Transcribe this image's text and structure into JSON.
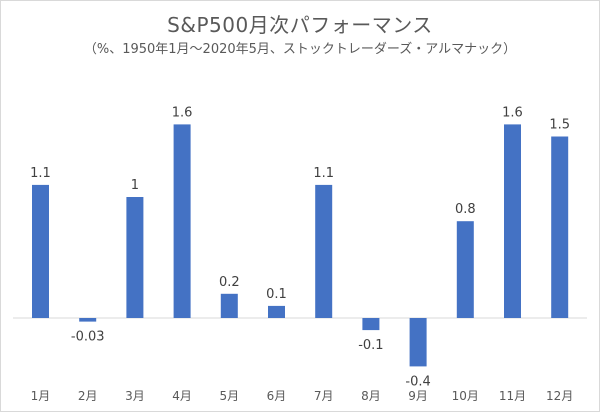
{
  "chart_data": {
    "type": "bar",
    "title": "S&P500月次パフォーマンス",
    "subtitle": "（%、1950年1月～2020年5月、ストックトレーダーズ・アルマナック）",
    "categories": [
      "1月",
      "2月",
      "3月",
      "4月",
      "5月",
      "6月",
      "7月",
      "8月",
      "9月",
      "10月",
      "11月",
      "12月"
    ],
    "values": [
      1.1,
      -0.03,
      1,
      1.6,
      0.2,
      0.1,
      1.1,
      -0.1,
      -0.4,
      0.8,
      1.6,
      1.5
    ],
    "data_labels": [
      "1.1",
      "-0.03",
      "1",
      "1.6",
      "0.2",
      "0.1",
      "1.1",
      "-0.1",
      "-0.4",
      "0.8",
      "1.6",
      "1.5"
    ],
    "xlabel": "",
    "ylabel": "",
    "ylim": [
      -0.5,
      1.8
    ],
    "grid": false,
    "legend": "none",
    "colors": {
      "bar": "#4472c4",
      "text": "#595959"
    }
  }
}
